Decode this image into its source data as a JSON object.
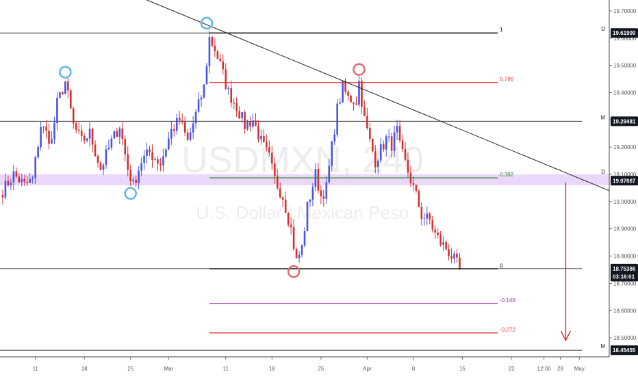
{
  "watermark": {
    "symbol": "USDMXN, 240",
    "name": "U.S. Dollar / Mexican Peso"
  },
  "colors": {
    "bull": "#4a52e8",
    "bear": "#d62f2f",
    "fib_top": "#000000",
    "fib_786": "#e83434",
    "fib_382": "#2e8b2e",
    "fib_0": "#000000",
    "fib_neg146": "#9c27b0",
    "fib_neg272": "#e53935",
    "zone": "#d8b7f5",
    "circle_blue": "#5ab4e8",
    "circle_red": "#e06a6a"
  },
  "chart_data": {
    "type": "candlestick",
    "ylim": [
      18.43,
      19.74
    ],
    "xlim": [
      -1,
      223
    ],
    "y_ticks": [
      "19.70000",
      "19.60000",
      "19.50000",
      "19.40000",
      "19.30000",
      "19.20000",
      "19.10000",
      "19.00000",
      "18.90000",
      "18.80000",
      "18.70000",
      "18.60000",
      "18.50000"
    ],
    "x_ticks": [
      {
        "label": "11",
        "x": 12
      },
      {
        "label": "18",
        "x": 30
      },
      {
        "label": "25",
        "x": 47
      },
      {
        "label": "Mar",
        "x": 61
      },
      {
        "label": "11",
        "x": 82
      },
      {
        "label": "18",
        "x": 99
      },
      {
        "label": "25",
        "x": 117
      },
      {
        "label": "Apr",
        "x": 134
      },
      {
        "label": "8",
        "x": 151
      },
      {
        "label": "15",
        "x": 169
      },
      {
        "label": "22",
        "x": 187
      },
      {
        "label": "12:00",
        "x": 199
      },
      {
        "label": "29",
        "x": 205
      },
      {
        "label": "May",
        "x": 212
      }
    ],
    "price_badges": [
      {
        "label": "19.61900",
        "price": 19.619,
        "color": "#131722"
      },
      {
        "label": "19.29481",
        "price": 19.2948,
        "color": "#131722"
      },
      {
        "label": "19.07667",
        "price": 19.0767,
        "color": "#131722"
      },
      {
        "label": "18.75386",
        "price": 18.7539,
        "color": "#131722"
      },
      {
        "label": "03:16:01",
        "price": 18.725,
        "color": "#131722"
      },
      {
        "label": "18.45455",
        "price": 18.4546,
        "color": "#131722"
      }
    ],
    "side_labels": [
      {
        "label": "D",
        "price": 19.619
      },
      {
        "label": "M",
        "price": 19.2948
      },
      {
        "label": "D",
        "price": 19.095
      },
      {
        "label": "M",
        "price": 18.4546
      }
    ],
    "horizontal_lines": [
      {
        "price": 19.619,
        "x0": -1,
        "x1": 182,
        "label": "1"
      },
      {
        "price": 19.2948,
        "x0": -1,
        "x1": 213,
        "label": ""
      },
      {
        "price": 18.7539,
        "x0": -1,
        "x1": 213,
        "label": ""
      },
      {
        "price": 18.4546,
        "x0": -1,
        "x1": 213,
        "label": ""
      }
    ],
    "fib_levels": [
      {
        "level": "1",
        "price": 19.619,
        "key": "fib_top"
      },
      {
        "level": "0.786",
        "price": 19.437,
        "key": "fib_786"
      },
      {
        "level": "0.382",
        "price": 19.087,
        "key": "fib_382"
      },
      {
        "level": "0",
        "price": 18.753,
        "key": "fib_0"
      },
      {
        "level": "-0.146",
        "price": 18.626,
        "key": "fib_neg146"
      },
      {
        "level": "-0.272",
        "price": 18.518,
        "key": "fib_neg272"
      }
    ],
    "fib_x_range": [
      76,
      182
    ],
    "zone": {
      "top": 19.1,
      "bottom": 19.06
    },
    "trendline": {
      "x0": 53,
      "p0": 19.74,
      "x1": 223,
      "p1": 19.04
    },
    "projection_arrow": {
      "x": 207,
      "from": 19.07,
      "to": 18.49
    },
    "circles": [
      {
        "x": 23,
        "price": 19.475,
        "color": "circle_blue"
      },
      {
        "x": 47,
        "price": 19.03,
        "color": "circle_blue"
      },
      {
        "x": 75,
        "price": 19.655,
        "color": "circle_blue"
      },
      {
        "x": 131,
        "price": 19.485,
        "color": "circle_red"
      },
      {
        "x": 107,
        "price": 18.743,
        "color": "circle_red"
      }
    ],
    "anchors": [
      [
        0,
        19.04
      ],
      [
        4,
        19.1
      ],
      [
        8,
        19.06
      ],
      [
        11,
        19.08
      ],
      [
        14,
        19.28
      ],
      [
        18,
        19.22
      ],
      [
        20,
        19.36
      ],
      [
        23,
        19.44
      ],
      [
        26,
        19.28
      ],
      [
        29,
        19.22
      ],
      [
        32,
        19.25
      ],
      [
        36,
        19.12
      ],
      [
        40,
        19.22
      ],
      [
        43,
        19.28
      ],
      [
        46,
        19.12
      ],
      [
        48,
        19.06
      ],
      [
        51,
        19.15
      ],
      [
        54,
        19.18
      ],
      [
        58,
        19.14
      ],
      [
        62,
        19.26
      ],
      [
        65,
        19.3
      ],
      [
        68,
        19.22
      ],
      [
        71,
        19.32
      ],
      [
        74,
        19.42
      ],
      [
        76,
        19.6
      ],
      [
        78,
        19.56
      ],
      [
        80,
        19.5
      ],
      [
        83,
        19.4
      ],
      [
        86,
        19.35
      ],
      [
        89,
        19.28
      ],
      [
        92,
        19.3
      ],
      [
        95,
        19.22
      ],
      [
        98,
        19.16
      ],
      [
        100,
        19.08
      ],
      [
        103,
        19.02
      ],
      [
        106,
        18.9
      ],
      [
        108,
        18.78
      ],
      [
        110,
        18.83
      ],
      [
        112,
        18.98
      ],
      [
        115,
        19.1
      ],
      [
        117,
        19.02
      ],
      [
        119,
        19.05
      ],
      [
        121,
        19.2
      ],
      [
        123,
        19.34
      ],
      [
        125,
        19.42
      ],
      [
        127,
        19.38
      ],
      [
        130,
        19.37
      ],
      [
        131,
        19.44
      ],
      [
        133,
        19.3
      ],
      [
        135,
        19.22
      ],
      [
        137,
        19.15
      ],
      [
        139,
        19.19
      ],
      [
        141,
        19.23
      ],
      [
        143,
        19.21
      ],
      [
        145,
        19.26
      ],
      [
        146,
        19.2
      ],
      [
        148,
        19.14
      ],
      [
        150,
        19.08
      ],
      [
        152,
        19.02
      ],
      [
        154,
        18.95
      ],
      [
        157,
        18.93
      ],
      [
        159,
        18.88
      ],
      [
        161,
        18.85
      ],
      [
        163,
        18.83
      ],
      [
        165,
        18.8
      ],
      [
        167,
        18.77
      ],
      [
        168,
        18.754
      ]
    ]
  }
}
